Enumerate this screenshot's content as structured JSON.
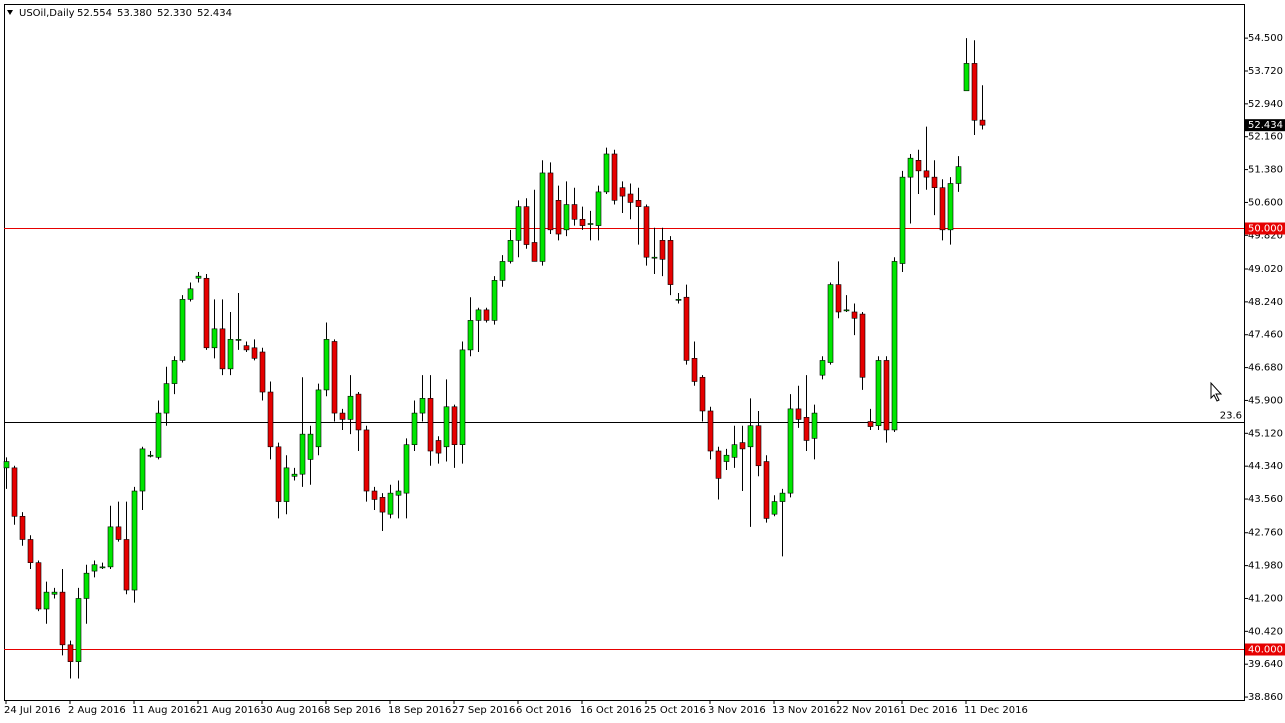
{
  "chart_data": {
    "type": "candlestick",
    "symbol": "USOil,Daily",
    "ohlc_labels": [
      "52.554",
      "53.380",
      "52.330",
      "52.434"
    ],
    "categories": [
      "24 Jul 2016",
      null,
      null,
      null,
      null,
      null,
      null,
      null,
      "2 Aug 2016",
      null,
      null,
      null,
      null,
      null,
      null,
      null,
      "11 Aug 2016",
      null,
      null,
      null,
      null,
      null,
      null,
      null,
      "21 Aug 2016",
      null,
      null,
      null,
      null,
      null,
      null,
      null,
      "30 Aug 2016",
      null,
      null,
      null,
      null,
      null,
      null,
      null,
      "8 Sep 2016",
      null,
      null,
      null,
      null,
      null,
      null,
      null,
      "18 Sep 2016",
      null,
      null,
      null,
      null,
      null,
      null,
      null,
      "27 Sep 2016",
      null,
      null,
      null,
      null,
      null,
      null,
      null,
      "6 Oct 2016",
      null,
      null,
      null,
      null,
      null,
      null,
      null,
      "16 Oct 2016",
      null,
      null,
      null,
      null,
      null,
      null,
      null,
      "25 Oct 2016",
      null,
      null,
      null,
      null,
      null,
      null,
      null,
      "3 Nov 2016",
      null,
      null,
      null,
      null,
      null,
      null,
      null,
      "13 Nov 2016",
      null,
      null,
      null,
      null,
      null,
      null,
      null,
      "22 Nov 2016",
      null,
      null,
      null,
      null,
      null,
      null,
      null,
      "1 Dec 2016",
      null,
      null,
      null,
      null,
      null,
      null,
      null,
      "11 Dec 2016",
      null,
      null
    ],
    "open": [
      44.3,
      44.3,
      43.15,
      42.6,
      42.05,
      40.95,
      41.3,
      41.35,
      40.1,
      39.7,
      41.2,
      41.85,
      41.95,
      41.95,
      42.9,
      42.6,
      41.4,
      43.75,
      44.6,
      44.55,
      45.6,
      46.3,
      46.85,
      48.3,
      48.8,
      48.8,
      47.15,
      47.6,
      46.65,
      47.35,
      47.2,
      47.15,
      47.05,
      46.1,
      44.8,
      43.5,
      44.1,
      44.15,
      44.5,
      44.8,
      46.15,
      47.3,
      45.6,
      45.45,
      46.05,
      45.2,
      43.75,
      43.6,
      43.2,
      43.65,
      43.7,
      44.85,
      45.6,
      45.95,
      44.95,
      44.8,
      45.75,
      44.85,
      47.1,
      47.8,
      48.05,
      47.8,
      48.75,
      49.2,
      49.7,
      50.5,
      49.65,
      49.2,
      51.3,
      50.65,
      49.95,
      50.55,
      50.2,
      50.1,
      50.05,
      50.85,
      51.75,
      50.95,
      50.8,
      50.65,
      50.5,
      49.3,
      49.7,
      49.7,
      48.3,
      48.35,
      46.9,
      46.45,
      45.65,
      44.7,
      44.45,
      44.55,
      44.9,
      44.8,
      45.3,
      44.45,
      43.2,
      43.5,
      43.7,
      45.7,
      45.5,
      45.0,
      46.5,
      46.8,
      48.65,
      48.05,
      48.0,
      47.95,
      45.4,
      45.3,
      46.85,
      45.2,
      49.15,
      51.2,
      51.6,
      51.35,
      51.2,
      50.95,
      49.95,
      51.05,
      53.25,
      53.9,
      52.554
    ],
    "high": [
      44.55,
      44.35,
      43.25,
      42.7,
      42.1,
      41.6,
      41.45,
      41.9,
      40.2,
      41.45,
      42.0,
      42.1,
      42.05,
      43.4,
      43.5,
      43.5,
      43.85,
      44.8,
      44.7,
      45.9,
      46.7,
      46.95,
      48.4,
      48.7,
      48.95,
      48.9,
      48.3,
      48.3,
      48.0,
      48.45,
      47.3,
      47.35,
      47.15,
      46.35,
      44.9,
      44.6,
      44.3,
      46.45,
      45.3,
      46.3,
      47.75,
      47.35,
      45.7,
      46.5,
      46.1,
      45.3,
      43.85,
      43.7,
      43.9,
      44.0,
      45.0,
      45.9,
      46.5,
      46.5,
      45.05,
      46.4,
      45.8,
      47.3,
      48.35,
      48.1,
      48.1,
      48.85,
      49.35,
      49.95,
      50.65,
      50.7,
      50.9,
      51.6,
      51.55,
      51.0,
      51.1,
      50.95,
      50.5,
      50.4,
      51.0,
      51.9,
      51.85,
      51.1,
      51.05,
      50.95,
      50.55,
      50.0,
      50.0,
      49.8,
      48.45,
      48.65,
      47.3,
      46.5,
      45.75,
      44.8,
      44.75,
      45.3,
      45.3,
      45.95,
      45.65,
      44.6,
      43.65,
      43.8,
      46.05,
      46.25,
      46.5,
      45.8,
      46.95,
      48.7,
      49.2,
      48.4,
      48.2,
      48.0,
      45.7,
      46.95,
      46.95,
      49.3,
      51.35,
      51.75,
      51.85,
      52.4,
      51.6,
      51.15,
      51.2,
      51.7,
      54.5,
      54.45,
      53.38
    ],
    "low": [
      43.8,
      42.95,
      42.45,
      41.9,
      40.9,
      40.6,
      41.2,
      39.85,
      39.3,
      39.3,
      40.6,
      41.7,
      41.9,
      41.9,
      42.55,
      41.3,
      41.1,
      43.3,
      44.55,
      44.5,
      45.3,
      46.05,
      46.8,
      48.25,
      48.7,
      47.1,
      46.9,
      46.5,
      46.5,
      47.1,
      47.05,
      46.85,
      45.9,
      44.5,
      43.1,
      43.2,
      44.0,
      43.85,
      43.9,
      44.6,
      46.0,
      45.4,
      45.2,
      45.1,
      44.7,
      43.5,
      43.3,
      42.8,
      43.1,
      43.1,
      43.1,
      44.7,
      45.4,
      44.35,
      44.4,
      44.45,
      44.3,
      44.4,
      46.95,
      47.05,
      47.75,
      47.7,
      48.6,
      49.15,
      49.3,
      49.5,
      49.2,
      49.1,
      49.85,
      49.7,
      49.8,
      50.05,
      49.95,
      49.7,
      49.7,
      50.8,
      50.55,
      50.35,
      50.2,
      49.6,
      49.1,
      48.9,
      48.85,
      48.4,
      48.2,
      46.75,
      46.25,
      45.4,
      44.5,
      43.55,
      44.25,
      44.3,
      43.75,
      42.9,
      44.1,
      43.0,
      43.15,
      42.2,
      43.6,
      45.25,
      44.7,
      44.5,
      46.4,
      46.75,
      47.85,
      48.0,
      47.45,
      46.15,
      45.2,
      45.2,
      44.9,
      45.15,
      48.95,
      50.1,
      50.8,
      50.9,
      50.3,
      49.7,
      49.6,
      50.85,
      53.25,
      52.2,
      52.33
    ],
    "close": [
      44.45,
      43.15,
      42.6,
      42.05,
      40.95,
      41.35,
      41.35,
      40.1,
      39.7,
      41.2,
      41.8,
      42.0,
      41.95,
      42.9,
      42.6,
      41.4,
      43.75,
      44.75,
      44.6,
      45.6,
      46.3,
      46.85,
      48.3,
      48.55,
      48.85,
      47.15,
      47.6,
      46.65,
      47.35,
      47.35,
      47.1,
      46.9,
      46.1,
      44.8,
      43.5,
      44.3,
      44.15,
      45.1,
      45.1,
      46.15,
      47.35,
      45.6,
      45.45,
      46.0,
      45.2,
      43.75,
      43.55,
      43.25,
      43.7,
      43.75,
      44.85,
      45.6,
      45.95,
      44.7,
      44.65,
      45.75,
      44.85,
      47.1,
      47.8,
      48.05,
      47.8,
      48.75,
      49.2,
      49.7,
      50.5,
      49.6,
      49.2,
      51.3,
      49.95,
      49.85,
      50.55,
      50.2,
      50.05,
      50.1,
      50.85,
      51.75,
      50.65,
      50.75,
      50.6,
      50.5,
      49.3,
      49.3,
      49.25,
      48.65,
      48.3,
      46.85,
      46.35,
      45.65,
      44.7,
      44.05,
      44.6,
      44.85,
      44.75,
      45.3,
      44.35,
      43.1,
      43.5,
      43.7,
      45.7,
      45.45,
      44.95,
      45.6,
      46.85,
      48.65,
      48.0,
      48.05,
      47.85,
      46.45,
      45.28,
      46.85,
      45.2,
      49.2,
      51.2,
      51.65,
      51.35,
      51.2,
      50.95,
      49.95,
      51.05,
      51.45,
      53.9,
      52.55,
      52.434
    ],
    "up_color": "#00e600",
    "down_color": "#e60000",
    "ylim": [
      38.79,
      55.31
    ],
    "yticks": [
      {
        "value": 54.5,
        "label": "54.500"
      },
      {
        "value": 53.72,
        "label": "53.720"
      },
      {
        "value": 52.94,
        "label": "52.940"
      },
      {
        "value": 52.16,
        "label": "52.160"
      },
      {
        "value": 51.38,
        "label": "51.380"
      },
      {
        "value": 50.6,
        "label": "50.600"
      },
      {
        "value": 49.82,
        "label": "49.820"
      },
      {
        "value": 49.02,
        "label": "49.020"
      },
      {
        "value": 48.24,
        "label": "48.240"
      },
      {
        "value": 47.46,
        "label": "47.460"
      },
      {
        "value": 46.68,
        "label": "46.680"
      },
      {
        "value": 45.9,
        "label": "45.900"
      },
      {
        "value": 45.12,
        "label": "45.120"
      },
      {
        "value": 44.34,
        "label": "44.340"
      },
      {
        "value": 43.56,
        "label": "43.560"
      },
      {
        "value": 42.76,
        "label": "42.760"
      },
      {
        "value": 41.98,
        "label": "41.980"
      },
      {
        "value": 41.2,
        "label": "41.200"
      },
      {
        "value": 40.42,
        "label": "40.420"
      },
      {
        "value": 39.64,
        "label": "39.640"
      },
      {
        "value": 38.86,
        "label": "38.860"
      }
    ],
    "hlines": [
      {
        "value": 50,
        "label": "50.000",
        "color": "#e60000",
        "boxed": true
      },
      {
        "value": 40,
        "label": "40.000",
        "color": "#e60000",
        "boxed": true
      },
      {
        "value": 45.39,
        "label": "23.6",
        "color": "#000000",
        "boxed": false
      }
    ],
    "price_marker": {
      "value": 52.434,
      "label": "52.434"
    }
  }
}
